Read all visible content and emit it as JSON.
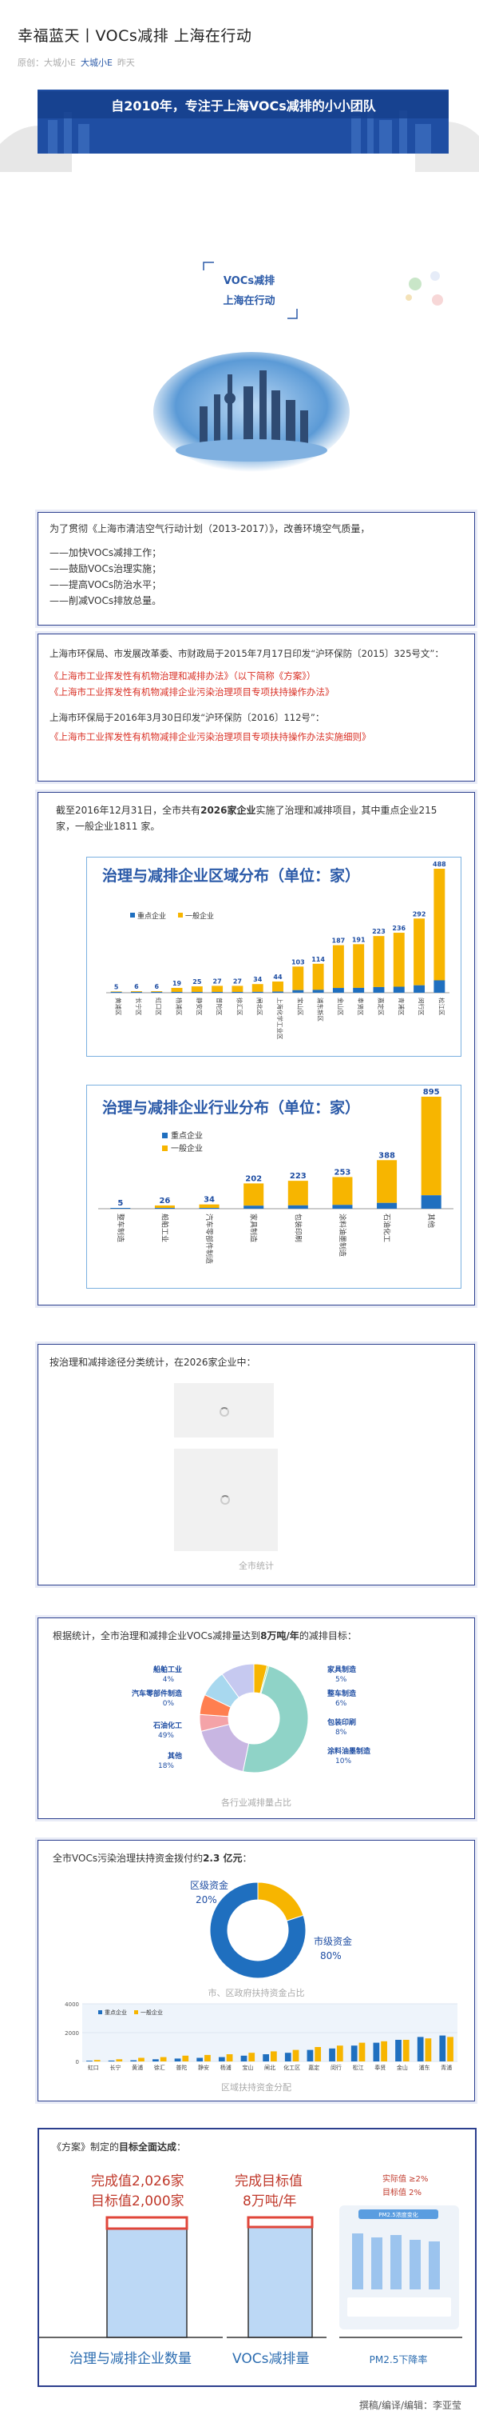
{
  "header": {
    "title": "幸福蓝天丨VOCs减排 上海在行动",
    "source": "原创：",
    "source_author": "大城小E",
    "account": "大城小E",
    "date": "昨天"
  },
  "banner": {
    "text": "自2010年，专注于上海VOCs减排的小小团队"
  },
  "tagline": {
    "line1": "VOCs减排",
    "line2": "上海在行动"
  },
  "s1": {
    "intro": "为了贯彻《上海市清洁空气行动计划（2013-2017）》，改善环境空气质量，",
    "items": [
      "——加快VOCs减排工作；",
      "——鼓励VOCs治理实施；",
      "——提高VOCs防治水平；",
      "——削减VOCs排放总量。"
    ]
  },
  "s2": {
    "p1": "上海市环保局、市发展改革委、市财政局于2015年7月17日印发“沪环保防〔2015〕325号文”：",
    "r1": "《上海市工业挥发性有机物治理和减排办法》（以下简称《方案》）",
    "r2": "《上海市工业挥发性有机物减排企业污染治理项目专项扶持操作办法》",
    "p2": "上海市环保局于2016年3月30日印发“沪环保防〔2016〕112号”：",
    "r3": "《上海市工业挥发性有机物减排企业污染治理项目专项扶持操作办法实施细则》"
  },
  "s3": {
    "text_a": "截至2016年12月31日，全市共有",
    "text_b": "2026家企业",
    "text_c": "实施了治理和减排项目，其中重点企业215 家，一般企业1811 家。"
  },
  "s4": {
    "text": "按治理和减排途径分类统计，在2026家企业中：",
    "caption": "全市统计"
  },
  "s5": {
    "text_a": "根据统计，全市治理和减排企业VOCs减排量达到",
    "text_b": "8万吨/年",
    "text_c": "的减排目标：",
    "caption": "各行业减排量占比"
  },
  "s6": {
    "text_a": "全市VOCs污染治理扶持资金拨付约",
    "text_b": "2.3 亿元",
    "text_c": "：",
    "caption1": "市、区政府扶持资金占比",
    "caption2": "区域扶持资金分配"
  },
  "s7": {
    "text_a": "《方案》制定的",
    "text_b": "目标全面达成",
    "text_c": "：",
    "g1_line1": "完成值2,026家",
    "g1_line2": "目标值2,000家",
    "g1_label": "治理与减排企业数量",
    "g2_line1": "完成目标值",
    "g2_line2": "8万吨/年",
    "g2_label": "VOCs减排量",
    "g3_line1": "实际值 ≥2%",
    "g3_line2": "目标值   2%",
    "g3_label": "PM2.5下降率",
    "g3_inner": "PM2.5浓度变化"
  },
  "footer": {
    "credit": "撰稿/编译/编辑：李亚莹"
  },
  "chart_data": [
    {
      "type": "bar",
      "title": "治理与减排企业区域分布（单位：家）",
      "categories": [
        "黄浦区",
        "长宁区",
        "虹口区",
        "杨浦区",
        "静安区",
        "普陀区",
        "徐汇区",
        "闸北区",
        "上海化学工业区",
        "宝山区",
        "浦东新区",
        "金山区",
        "奉贤区",
        "嘉定区",
        "青浦区",
        "闵行区",
        "松江区"
      ],
      "series": [
        {
          "name": "重点企业",
          "color": "#1f6fbf"
        },
        {
          "name": "一般企业",
          "color": "#f7b500"
        }
      ],
      "totals": [
        5,
        6,
        6,
        19,
        25,
        27,
        27,
        34,
        44,
        103,
        114,
        187,
        191,
        223,
        236,
        292,
        488
      ]
    },
    {
      "type": "bar",
      "title": "治理与减排企业行业分布（单位：家）",
      "categories": [
        "整车制造",
        "船舶工业",
        "汽车零部件制造",
        "家具制造",
        "包装印刷",
        "涂料油墨制造",
        "石油化工",
        "其他"
      ],
      "series": [
        {
          "name": "重点企业",
          "color": "#1f6fbf"
        },
        {
          "name": "一般企业",
          "color": "#f7b500"
        }
      ],
      "totals": [
        5,
        26,
        34,
        202,
        223,
        253,
        388,
        895
      ]
    },
    {
      "type": "pie",
      "title": "各行业减排量占比",
      "slices": [
        {
          "label": "船舶工业",
          "pct": "4%",
          "value": 4
        },
        {
          "label": "汽车零部件制造",
          "pct": "0%",
          "value": 0.5
        },
        {
          "label": "石油化工",
          "pct": "49%",
          "value": 49
        },
        {
          "label": "其他",
          "pct": "18%",
          "value": 18
        },
        {
          "label": "家具制造",
          "pct": "5%",
          "value": 5
        },
        {
          "label": "整车制造",
          "pct": "6%",
          "value": 6
        },
        {
          "label": "包装印刷",
          "pct": "8%",
          "value": 8
        },
        {
          "label": "涂料油墨制造",
          "pct": "10%",
          "value": 10
        }
      ],
      "colors": [
        "#f7b500",
        "#9be06a",
        "#8fd3c7",
        "#c8b6e2",
        "#f4a3a8",
        "#ff7f50",
        "#a8d8ef",
        "#c6c9f0"
      ]
    },
    {
      "type": "pie",
      "title": "市、区政府扶持资金占比",
      "slices": [
        {
          "label": "区级资金",
          "pct": "20%",
          "value": 20
        },
        {
          "label": "市级资金",
          "pct": "80%",
          "value": 80
        }
      ],
      "colors": [
        "#f7b500",
        "#1f6fbf"
      ]
    },
    {
      "type": "bar",
      "title": "区域扶持资金分配",
      "series": [
        {
          "name": "重点企业",
          "color": "#1f6fbf"
        },
        {
          "name": "一般企业",
          "color": "#f7b500"
        }
      ],
      "ylim": [
        0,
        4000
      ],
      "yticks": [
        "4000",
        "2000",
        "0"
      ],
      "categories": [
        "虹口",
        "长宁",
        "黄浦",
        "徐汇",
        "普陀",
        "静安",
        "杨浦",
        "宝山",
        "闸北",
        "化工区",
        "嘉定",
        "闵行",
        "松江",
        "奉贤",
        "金山",
        "浦东",
        "青浦"
      ],
      "key": [
        50,
        60,
        80,
        150,
        200,
        250,
        300,
        400,
        500,
        600,
        800,
        900,
        1100,
        1300,
        1500,
        1700,
        1800
      ],
      "general": [
        100,
        150,
        250,
        300,
        400,
        450,
        500,
        600,
        700,
        800,
        1000,
        1100,
        1300,
        1400,
        1500,
        1600,
        1700
      ]
    }
  ]
}
